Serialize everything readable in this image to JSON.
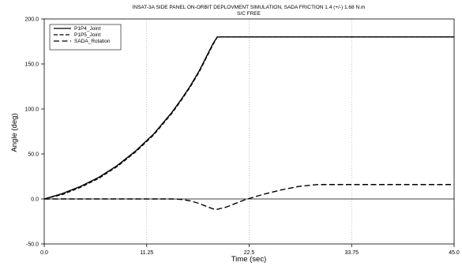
{
  "chart_data": {
    "type": "line",
    "title": "INSAT-3A SIDE PANEL ON-ORBIT DEPLOVMENT SIMULATION, SADA FRICTION 1.4 (+/-) 1.68 N.m",
    "subtitle": "S/C FREE",
    "xlabel": "Time (sec)",
    "ylabel": "Angle (deg)",
    "xlim": [
      0.0,
      45.0
    ],
    "ylim": [
      -50.0,
      200.0
    ],
    "xticks": [
      "0.0",
      "11.25",
      "22.5",
      "33.75",
      "45.0"
    ],
    "yticks": [
      "-50.0",
      "0.0",
      "50.0",
      "100.0",
      "150.0",
      "200.0"
    ],
    "grid": "vertical dotted",
    "legend_position": "top-left",
    "series": [
      {
        "name": "P1P4_Joint",
        "style": "solid",
        "x": [
          0,
          2,
          4,
          6,
          8,
          10,
          12,
          14,
          15,
          16,
          17,
          18,
          18.5,
          19,
          25,
          30,
          35,
          40,
          45
        ],
        "y": [
          0,
          6,
          14,
          24,
          37,
          53,
          72,
          96,
          110,
          125,
          142,
          162,
          172,
          180,
          180,
          180,
          180,
          180,
          180
        ]
      },
      {
        "name": "P1P5_Joint",
        "style": "dashed",
        "x": [
          0,
          2,
          4,
          6,
          8,
          10,
          12,
          14,
          15,
          16,
          17,
          18,
          18.5,
          19,
          25,
          30,
          35,
          40,
          45
        ],
        "y": [
          0,
          5,
          13,
          23,
          36,
          52,
          71,
          95,
          109,
          124,
          141,
          161,
          171,
          180,
          180,
          180,
          180,
          180,
          180
        ]
      },
      {
        "name": "SADA_Rotation",
        "style": "long-dashed",
        "x": [
          0,
          5,
          10,
          14,
          15,
          16,
          17,
          18,
          18.8,
          20,
          21,
          22,
          24,
          26,
          28,
          30,
          33,
          36,
          40,
          45
        ],
        "y": [
          0,
          0,
          0,
          0,
          -0.5,
          -2,
          -5,
          -9,
          -12,
          -9,
          -5,
          -1,
          5,
          10,
          14,
          16,
          16,
          16,
          16,
          16
        ]
      }
    ],
    "annotations": {
      "zero_reference_line": 0
    }
  }
}
